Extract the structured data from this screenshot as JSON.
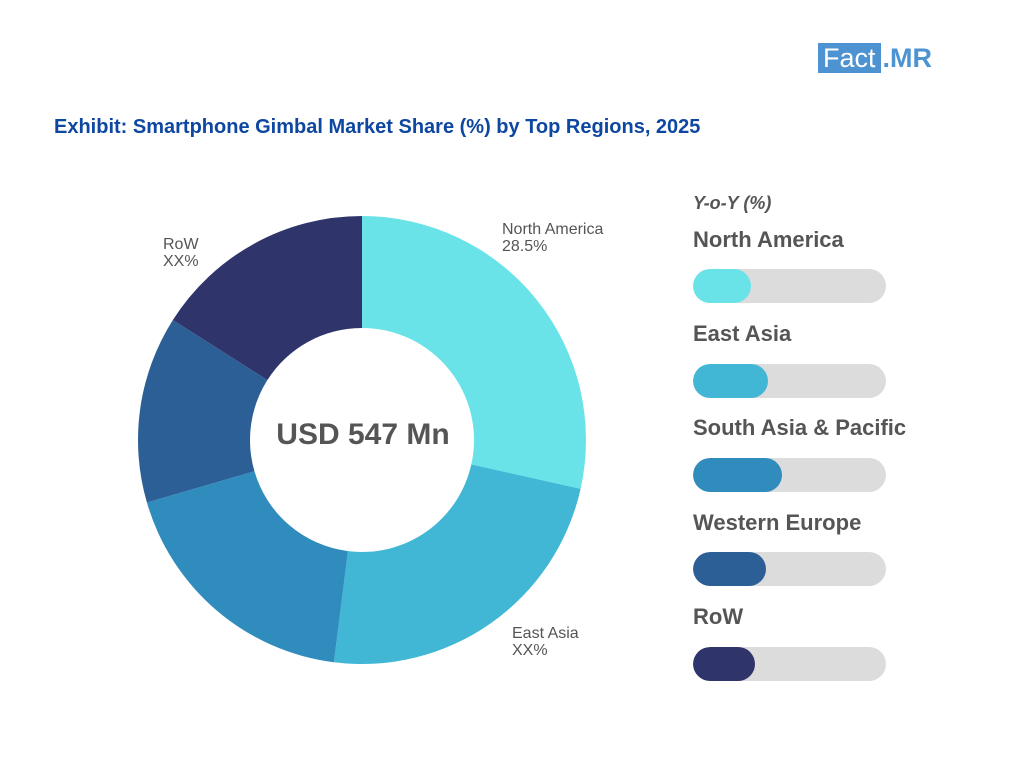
{
  "logo": {
    "box_text": "Fact",
    "rest_text": ".MR"
  },
  "title": "Exhibit: Smartphone Gimbal Market Share (%) by Top Regions, 2025",
  "center_text": "USD 547 Mn",
  "chart_data": {
    "type": "pie",
    "donut": true,
    "title": "Exhibit: Smartphone Gimbal Market Share (%) by Top Regions, 2025",
    "slices": [
      {
        "name": "North America",
        "value": 28.5,
        "label_name": "North America",
        "label_value": "28.5%",
        "color": "#6ae3e8"
      },
      {
        "name": "East Asia",
        "value": 23.5,
        "label_name": "East Asia",
        "label_value": "XX%",
        "color": "#41b7d5"
      },
      {
        "name": "South Asia & Pacific",
        "value": 18.5,
        "label_name": "",
        "label_value": "",
        "color": "#2f8cbd"
      },
      {
        "name": "Western Europe",
        "value": 13.5,
        "label_name": "",
        "label_value": "",
        "color": "#2d5f97"
      },
      {
        "name": "RoW",
        "value": 16.0,
        "label_name": "RoW",
        "label_value": "XX%",
        "color": "#2f346a"
      }
    ]
  },
  "yoy": {
    "header": "Y-o-Y (%)",
    "items": [
      {
        "name": "North America",
        "level": 0.3,
        "color": "#6ae3e8"
      },
      {
        "name": "East Asia",
        "level": 0.39,
        "color": "#41b7d5"
      },
      {
        "name": "South Asia & Pacific",
        "level": 0.46,
        "color": "#2f8cbd"
      },
      {
        "name": "Western Europe",
        "level": 0.38,
        "color": "#2d5f97"
      },
      {
        "name": "RoW",
        "level": 0.32,
        "color": "#2f346a"
      }
    ]
  }
}
